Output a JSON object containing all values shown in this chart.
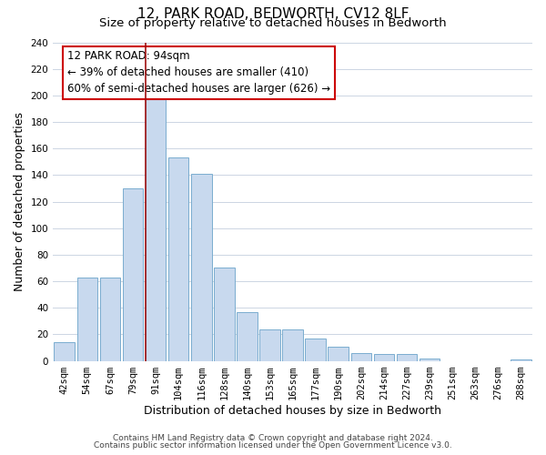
{
  "title": "12, PARK ROAD, BEDWORTH, CV12 8LF",
  "subtitle": "Size of property relative to detached houses in Bedworth",
  "xlabel": "Distribution of detached houses by size in Bedworth",
  "ylabel": "Number of detached properties",
  "bar_labels": [
    "42sqm",
    "54sqm",
    "67sqm",
    "79sqm",
    "91sqm",
    "104sqm",
    "116sqm",
    "128sqm",
    "140sqm",
    "153sqm",
    "165sqm",
    "177sqm",
    "190sqm",
    "202sqm",
    "214sqm",
    "227sqm",
    "239sqm",
    "251sqm",
    "263sqm",
    "276sqm",
    "288sqm"
  ],
  "bar_values": [
    14,
    63,
    63,
    130,
    200,
    153,
    141,
    70,
    37,
    24,
    24,
    17,
    11,
    6,
    5,
    5,
    2,
    0,
    0,
    0,
    1
  ],
  "bar_color": "#c8d9ee",
  "bar_edge_color": "#7aadcf",
  "vline_bar_index": 4,
  "vline_color": "#a01010",
  "ylim": [
    0,
    240
  ],
  "yticks": [
    0,
    20,
    40,
    60,
    80,
    100,
    120,
    140,
    160,
    180,
    200,
    220,
    240
  ],
  "annotation_title": "12 PARK ROAD: 94sqm",
  "annotation_line1": "← 39% of detached houses are smaller (410)",
  "annotation_line2": "60% of semi-detached houses are larger (626) →",
  "annotation_box_color": "#ffffff",
  "annotation_box_edge_color": "#cc0000",
  "footnote1": "Contains HM Land Registry data © Crown copyright and database right 2024.",
  "footnote2": "Contains public sector information licensed under the Open Government Licence v3.0.",
  "background_color": "#ffffff",
  "grid_color": "#ccd5e3",
  "title_fontsize": 11,
  "subtitle_fontsize": 9.5,
  "axis_label_fontsize": 9,
  "tick_fontsize": 7.5,
  "annotation_fontsize": 8.5,
  "footnote_fontsize": 6.5
}
